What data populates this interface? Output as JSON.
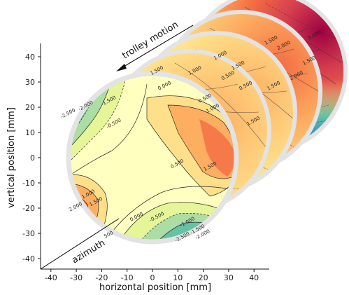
{
  "chart_data": {
    "type": "heatmap",
    "title": "",
    "xlabel": "horizontal position [mm]",
    "ylabel": "vertical position [mm]",
    "xlim": [
      -45,
      45
    ],
    "ylim": [
      -45,
      45
    ],
    "xticks": [
      -40,
      -30,
      -20,
      -10,
      0,
      10,
      20,
      30,
      40
    ],
    "yticks": [
      40,
      30,
      20,
      10,
      0,
      -10,
      -20,
      -30,
      -40
    ],
    "grid": false,
    "annotations": {
      "trolley": "trolley motion",
      "azimuth": "azimuth"
    },
    "colormap": [
      "#5e4fa2",
      "#3288bd",
      "#66c2a5",
      "#abdda4",
      "#e6f598",
      "#ffffbf",
      "#fee08b",
      "#fdae61",
      "#f46d43",
      "#d53e4f",
      "#9e0142"
    ],
    "contour_levels": [
      "-2.500",
      "-2.000",
      "-1.500",
      "-1.000",
      "-0.500",
      "0.000",
      "0.500",
      "1.000",
      "1.500",
      "2.000",
      "2.500",
      "3.000"
    ],
    "slices": [
      {
        "slice": 1,
        "value_range": [
          -3.0,
          2.5
        ]
      },
      {
        "slice": 2,
        "value_range": [
          -2.0,
          2.5
        ]
      },
      {
        "slice": 3,
        "value_range": [
          -1.5,
          2.5
        ]
      },
      {
        "slice": 4,
        "value_range": [
          -1.0,
          3.0
        ]
      },
      {
        "slice": 5,
        "value_range": [
          -0.5,
          3.5
        ]
      }
    ],
    "front_labels": [
      {
        "text": "-2.500",
        "x": -33,
        "y": 17
      },
      {
        "text": "-2.000",
        "x": -26,
        "y": 20
      },
      {
        "text": "-1.500",
        "x": -17,
        "y": 22
      },
      {
        "text": "-0.500",
        "x": -15,
        "y": 13
      },
      {
        "text": "0.000",
        "x": 5,
        "y": 28
      },
      {
        "text": "0.500",
        "x": 21,
        "y": 23
      },
      {
        "text": "1.000",
        "x": 24,
        "y": 19
      },
      {
        "text": "0.500",
        "x": 10,
        "y": -3
      },
      {
        "text": "1.000",
        "x": -25,
        "y": -15
      },
      {
        "text": "1.500",
        "x": -22,
        "y": -18
      },
      {
        "text": "2.000",
        "x": -30,
        "y": -20
      },
      {
        "text": "0.000",
        "x": -6,
        "y": -24
      },
      {
        "text": "-0.500",
        "x": 2,
        "y": -24
      },
      {
        "text": "-1.000",
        "x": 14,
        "y": -26
      },
      {
        "text": "-1.500",
        "x": 18,
        "y": -29
      },
      {
        "text": "-2.000",
        "x": 20,
        "y": -31
      },
      {
        "text": "-2.500",
        "x": 12,
        "y": -32
      },
      {
        "text": "500",
        "x": -17,
        "y": -31
      },
      {
        "text": "1.500",
        "x": 23,
        "y": -4
      }
    ],
    "back_labels": [
      {
        "slice": 2,
        "text": "1.500",
        "x": 2,
        "y": 34
      },
      {
        "slice": 2,
        "text": "0.500",
        "x": 30,
        "y": 32
      },
      {
        "slice": 2,
        "text": "1.500",
        "x": 40,
        "y": 14
      },
      {
        "slice": 3,
        "text": "1.000",
        "x": 17,
        "y": 34
      },
      {
        "slice": 3,
        "text": "1.500",
        "x": 34,
        "y": 36
      },
      {
        "slice": 3,
        "text": "0.500",
        "x": 37,
        "y": 28
      },
      {
        "slice": 4,
        "text": "1.000",
        "x": 27,
        "y": 40
      },
      {
        "slice": 4,
        "text": "1.500",
        "x": 48,
        "y": 28
      },
      {
        "slice": 4,
        "text": "2.000",
        "x": 57,
        "y": 32
      },
      {
        "slice": 5,
        "text": "1.500",
        "x": 47,
        "y": 46
      },
      {
        "slice": 5,
        "text": "2.000",
        "x": 52,
        "y": 44
      },
      {
        "slice": 5,
        "text": "3.000",
        "x": 64,
        "y": 48
      },
      {
        "slice": 5,
        "text": "1.500",
        "x": 62,
        "y": 38
      },
      {
        "slice": 5,
        "text": "2.500",
        "x": 81,
        "y": 34
      }
    ]
  }
}
